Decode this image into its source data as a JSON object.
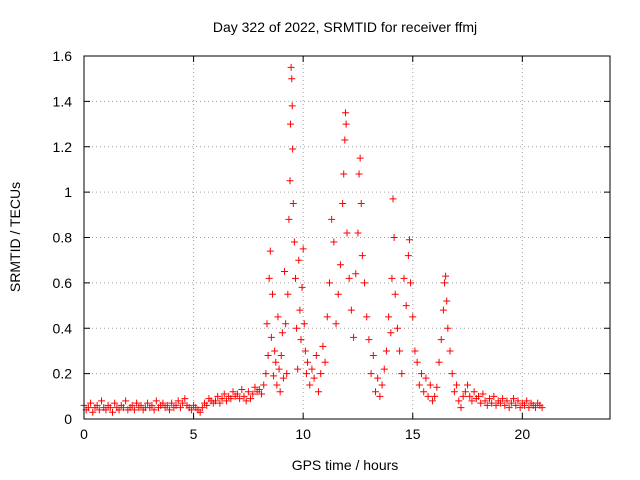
{
  "chart_data": {
    "type": "scatter",
    "title": "Day 322 of 2022, SRMTID for receiver ffmj",
    "xlabel": "GPS time / hours",
    "ylabel": "SRMTID / TECUs",
    "xlim": [
      0,
      24
    ],
    "ylim": [
      0,
      1.6
    ],
    "xticks": [
      0,
      5,
      10,
      15,
      20
    ],
    "yticks": [
      0,
      0.2,
      0.4,
      0.6,
      0.8,
      1,
      1.2,
      1.4,
      1.6
    ],
    "xtick_labels": [
      "0",
      "5",
      "10",
      "15",
      "20"
    ],
    "ytick_labels": [
      "0",
      "0.2",
      "0.4",
      "0.6",
      "0.8",
      "1",
      "1.2",
      "1.4",
      "1.6"
    ],
    "grid": true,
    "marker": "+",
    "color": "#ff0000",
    "series": [
      {
        "name": "ffmj",
        "points": [
          [
            0.0,
            0.06
          ],
          [
            0.1,
            0.04
          ],
          [
            0.2,
            0.05
          ],
          [
            0.3,
            0.07
          ],
          [
            0.4,
            0.03
          ],
          [
            0.5,
            0.05
          ],
          [
            0.6,
            0.06
          ],
          [
            0.7,
            0.04
          ],
          [
            0.8,
            0.08
          ],
          [
            0.9,
            0.05
          ],
          [
            1.0,
            0.04
          ],
          [
            1.1,
            0.06
          ],
          [
            1.2,
            0.05
          ],
          [
            1.3,
            0.03
          ],
          [
            1.4,
            0.07
          ],
          [
            1.5,
            0.05
          ],
          [
            1.6,
            0.04
          ],
          [
            1.7,
            0.06
          ],
          [
            1.8,
            0.05
          ],
          [
            1.9,
            0.08
          ],
          [
            2.0,
            0.04
          ],
          [
            2.1,
            0.05
          ],
          [
            2.2,
            0.06
          ],
          [
            2.3,
            0.04
          ],
          [
            2.4,
            0.07
          ],
          [
            2.5,
            0.05
          ],
          [
            2.6,
            0.06
          ],
          [
            2.7,
            0.04
          ],
          [
            2.8,
            0.05
          ],
          [
            2.9,
            0.07
          ],
          [
            3.0,
            0.05
          ],
          [
            3.1,
            0.06
          ],
          [
            3.2,
            0.04
          ],
          [
            3.3,
            0.08
          ],
          [
            3.4,
            0.05
          ],
          [
            3.5,
            0.06
          ],
          [
            3.6,
            0.07
          ],
          [
            3.7,
            0.05
          ],
          [
            3.8,
            0.06
          ],
          [
            3.9,
            0.04
          ],
          [
            4.0,
            0.07
          ],
          [
            4.1,
            0.05
          ],
          [
            4.2,
            0.06
          ],
          [
            4.3,
            0.08
          ],
          [
            4.4,
            0.05
          ],
          [
            4.5,
            0.07
          ],
          [
            4.6,
            0.09
          ],
          [
            4.7,
            0.06
          ],
          [
            4.8,
            0.05
          ],
          [
            4.9,
            0.04
          ],
          [
            5.0,
            0.06
          ],
          [
            5.1,
            0.05
          ],
          [
            5.2,
            0.04
          ],
          [
            5.3,
            0.03
          ],
          [
            5.4,
            0.05
          ],
          [
            5.5,
            0.07
          ],
          [
            5.6,
            0.06
          ],
          [
            5.7,
            0.09
          ],
          [
            5.8,
            0.08
          ],
          [
            5.9,
            0.07
          ],
          [
            6.0,
            0.08
          ],
          [
            6.1,
            0.1
          ],
          [
            6.2,
            0.07
          ],
          [
            6.3,
            0.09
          ],
          [
            6.4,
            0.11
          ],
          [
            6.5,
            0.08
          ],
          [
            6.6,
            0.1
          ],
          [
            6.7,
            0.09
          ],
          [
            6.8,
            0.12
          ],
          [
            6.9,
            0.1
          ],
          [
            7.0,
            0.11
          ],
          [
            7.1,
            0.09
          ],
          [
            7.2,
            0.13
          ],
          [
            7.3,
            0.1
          ],
          [
            7.4,
            0.08
          ],
          [
            7.5,
            0.12
          ],
          [
            7.6,
            0.09
          ],
          [
            7.7,
            0.11
          ],
          [
            7.8,
            0.14
          ],
          [
            7.9,
            0.12
          ],
          [
            8.0,
            0.13
          ],
          [
            8.1,
            0.11
          ],
          [
            8.2,
            0.15
          ],
          [
            8.3,
            0.2
          ],
          [
            8.35,
            0.42
          ],
          [
            8.4,
            0.28
          ],
          [
            8.45,
            0.62
          ],
          [
            8.5,
            0.74
          ],
          [
            8.55,
            0.36
          ],
          [
            8.6,
            0.55
          ],
          [
            8.65,
            0.19
          ],
          [
            8.7,
            0.3
          ],
          [
            8.75,
            0.25
          ],
          [
            8.8,
            0.15
          ],
          [
            8.85,
            0.45
          ],
          [
            8.9,
            0.22
          ],
          [
            8.95,
            0.12
          ],
          [
            9.0,
            0.28
          ],
          [
            9.05,
            0.38
          ],
          [
            9.1,
            0.18
          ],
          [
            9.15,
            0.65
          ],
          [
            9.2,
            0.42
          ],
          [
            9.25,
            0.2
          ],
          [
            9.3,
            0.55
          ],
          [
            9.35,
            0.88
          ],
          [
            9.4,
            1.05
          ],
          [
            9.42,
            1.3
          ],
          [
            9.45,
            1.55
          ],
          [
            9.48,
            1.5
          ],
          [
            9.5,
            1.38
          ],
          [
            9.52,
            1.19
          ],
          [
            9.55,
            0.95
          ],
          [
            9.6,
            0.78
          ],
          [
            9.65,
            0.62
          ],
          [
            9.7,
            0.4
          ],
          [
            9.75,
            0.22
          ],
          [
            9.8,
            0.7
          ],
          [
            9.85,
            0.48
          ],
          [
            9.9,
            0.35
          ],
          [
            9.95,
            0.58
          ],
          [
            10.0,
            0.75
          ],
          [
            10.05,
            0.42
          ],
          [
            10.1,
            0.3
          ],
          [
            10.15,
            0.2
          ],
          [
            10.2,
            0.25
          ],
          [
            10.3,
            0.15
          ],
          [
            10.4,
            0.22
          ],
          [
            10.5,
            0.18
          ],
          [
            10.6,
            0.28
          ],
          [
            10.7,
            0.12
          ],
          [
            10.8,
            0.2
          ],
          [
            10.9,
            0.32
          ],
          [
            11.0,
            0.25
          ],
          [
            11.1,
            0.45
          ],
          [
            11.2,
            0.6
          ],
          [
            11.3,
            0.88
          ],
          [
            11.4,
            0.78
          ],
          [
            11.5,
            0.42
          ],
          [
            11.6,
            0.55
          ],
          [
            11.7,
            0.68
          ],
          [
            11.8,
            0.95
          ],
          [
            11.85,
            1.08
          ],
          [
            11.9,
            1.23
          ],
          [
            11.93,
            1.35
          ],
          [
            11.96,
            1.3
          ],
          [
            12.0,
            0.82
          ],
          [
            12.1,
            0.62
          ],
          [
            12.2,
            0.48
          ],
          [
            12.3,
            0.36
          ],
          [
            12.4,
            0.64
          ],
          [
            12.5,
            0.82
          ],
          [
            12.55,
            1.08
          ],
          [
            12.6,
            1.15
          ],
          [
            12.65,
            0.95
          ],
          [
            12.7,
            0.72
          ],
          [
            12.8,
            0.6
          ],
          [
            12.9,
            0.45
          ],
          [
            13.0,
            0.35
          ],
          [
            13.1,
            0.2
          ],
          [
            13.2,
            0.28
          ],
          [
            13.3,
            0.12
          ],
          [
            13.4,
            0.18
          ],
          [
            13.5,
            0.1
          ],
          [
            13.6,
            0.15
          ],
          [
            13.7,
            0.22
          ],
          [
            13.8,
            0.3
          ],
          [
            13.9,
            0.45
          ],
          [
            14.0,
            0.38
          ],
          [
            14.05,
            0.62
          ],
          [
            14.1,
            0.97
          ],
          [
            14.15,
            0.8
          ],
          [
            14.2,
            0.55
          ],
          [
            14.3,
            0.4
          ],
          [
            14.4,
            0.3
          ],
          [
            14.5,
            0.2
          ],
          [
            14.6,
            0.62
          ],
          [
            14.7,
            0.5
          ],
          [
            14.8,
            0.72
          ],
          [
            14.85,
            0.79
          ],
          [
            14.9,
            0.6
          ],
          [
            15.0,
            0.45
          ],
          [
            15.1,
            0.3
          ],
          [
            15.2,
            0.25
          ],
          [
            15.3,
            0.15
          ],
          [
            15.4,
            0.2
          ],
          [
            15.5,
            0.12
          ],
          [
            15.6,
            0.18
          ],
          [
            15.7,
            0.1
          ],
          [
            15.8,
            0.15
          ],
          [
            15.9,
            0.08
          ],
          [
            16.0,
            0.1
          ],
          [
            16.1,
            0.14
          ],
          [
            16.2,
            0.25
          ],
          [
            16.3,
            0.35
          ],
          [
            16.4,
            0.48
          ],
          [
            16.45,
            0.6
          ],
          [
            16.5,
            0.63
          ],
          [
            16.55,
            0.52
          ],
          [
            16.6,
            0.4
          ],
          [
            16.7,
            0.3
          ],
          [
            16.8,
            0.2
          ],
          [
            16.9,
            0.12
          ],
          [
            17.0,
            0.15
          ],
          [
            17.1,
            0.08
          ],
          [
            17.2,
            0.05
          ],
          [
            17.3,
            0.1
          ],
          [
            17.4,
            0.12
          ],
          [
            17.5,
            0.15
          ],
          [
            17.6,
            0.1
          ],
          [
            17.7,
            0.08
          ],
          [
            17.8,
            0.12
          ],
          [
            17.9,
            0.09
          ],
          [
            18.0,
            0.1
          ],
          [
            18.1,
            0.07
          ],
          [
            18.2,
            0.11
          ],
          [
            18.3,
            0.08
          ],
          [
            18.4,
            0.06
          ],
          [
            18.5,
            0.09
          ],
          [
            18.6,
            0.07
          ],
          [
            18.7,
            0.1
          ],
          [
            18.8,
            0.06
          ],
          [
            18.9,
            0.08
          ],
          [
            19.0,
            0.07
          ],
          [
            19.1,
            0.09
          ],
          [
            19.2,
            0.06
          ],
          [
            19.3,
            0.08
          ],
          [
            19.4,
            0.05
          ],
          [
            19.5,
            0.07
          ],
          [
            19.6,
            0.09
          ],
          [
            19.7,
            0.06
          ],
          [
            19.8,
            0.08
          ],
          [
            19.9,
            0.05
          ],
          [
            20.0,
            0.07
          ],
          [
            20.1,
            0.06
          ],
          [
            20.2,
            0.08
          ],
          [
            20.3,
            0.05
          ],
          [
            20.4,
            0.07
          ],
          [
            20.5,
            0.06
          ],
          [
            20.6,
            0.05
          ],
          [
            20.7,
            0.07
          ],
          [
            20.8,
            0.06
          ],
          [
            20.9,
            0.05
          ]
        ]
      }
    ]
  }
}
